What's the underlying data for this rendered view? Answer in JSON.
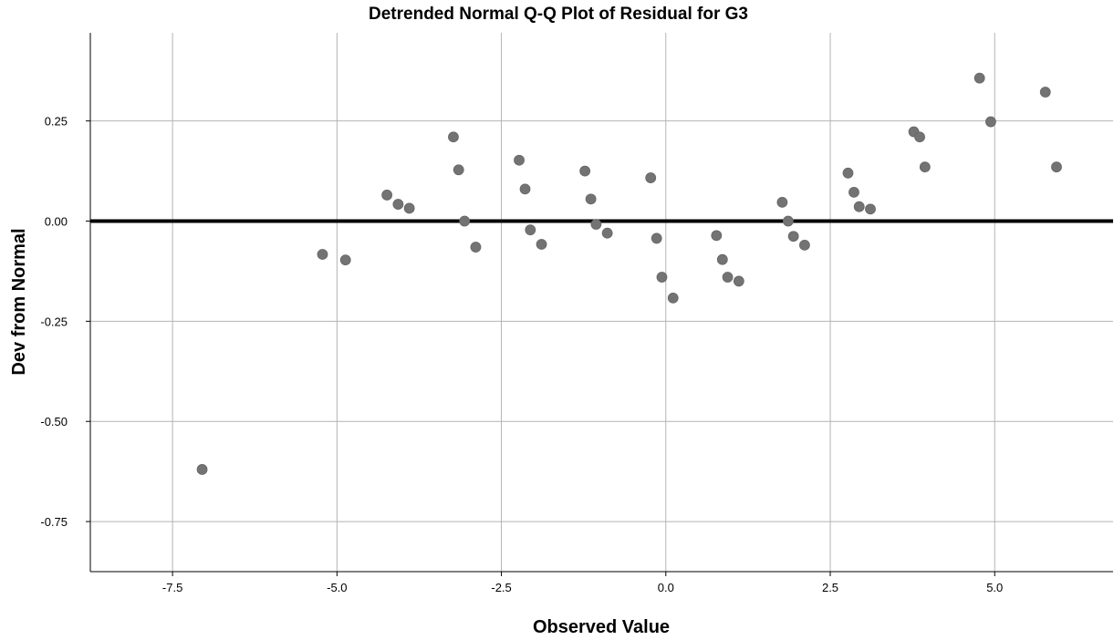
{
  "chart_data": {
    "type": "scatter",
    "title": "Detrended Normal Q-Q Plot of Residual for G3",
    "xlabel": "Observed Value",
    "ylabel": "Dev from Normal",
    "xlim": [
      -8.75,
      6.8
    ],
    "ylim": [
      -0.875,
      0.47
    ],
    "xticks": [
      -7.5,
      -5.0,
      -2.5,
      0.0,
      2.5,
      5.0
    ],
    "xtick_labels": [
      "-7.5",
      "-5.0",
      "-2.5",
      "0.0",
      "2.5",
      "5.0"
    ],
    "yticks": [
      0.25,
      0.0,
      -0.25,
      -0.5,
      -0.75
    ],
    "ytick_labels": [
      "0.25",
      "0.00",
      "-0.25",
      "-0.50",
      "-0.75"
    ],
    "grid": true,
    "reference_line_y": 0.0,
    "colors": {
      "point": "#737373",
      "grid": "#b4b4b4",
      "reference": "#000000",
      "axis": "#000000"
    },
    "points": [
      {
        "x": -7.05,
        "y": -0.62
      },
      {
        "x": -5.22,
        "y": -0.083
      },
      {
        "x": -4.87,
        "y": -0.097
      },
      {
        "x": -4.24,
        "y": 0.065
      },
      {
        "x": -4.07,
        "y": 0.042
      },
      {
        "x": -3.9,
        "y": 0.032
      },
      {
        "x": -3.23,
        "y": 0.21
      },
      {
        "x": -3.15,
        "y": 0.128
      },
      {
        "x": -3.06,
        "y": 0.0
      },
      {
        "x": -2.89,
        "y": -0.065
      },
      {
        "x": -2.23,
        "y": 0.152
      },
      {
        "x": -2.14,
        "y": 0.08
      },
      {
        "x": -2.06,
        "y": -0.022
      },
      {
        "x": -1.89,
        "y": -0.058
      },
      {
        "x": -1.23,
        "y": 0.125
      },
      {
        "x": -1.14,
        "y": 0.055
      },
      {
        "x": -1.06,
        "y": -0.008
      },
      {
        "x": -0.89,
        "y": -0.03
      },
      {
        "x": -0.23,
        "y": 0.108
      },
      {
        "x": -0.14,
        "y": -0.043
      },
      {
        "x": -0.06,
        "y": -0.14
      },
      {
        "x": 0.11,
        "y": -0.192
      },
      {
        "x": 0.77,
        "y": -0.036
      },
      {
        "x": 0.86,
        "y": -0.096
      },
      {
        "x": 0.94,
        "y": -0.14
      },
      {
        "x": 1.11,
        "y": -0.15
      },
      {
        "x": 1.77,
        "y": 0.047
      },
      {
        "x": 1.86,
        "y": 0.0
      },
      {
        "x": 1.94,
        "y": -0.038
      },
      {
        "x": 2.11,
        "y": -0.06
      },
      {
        "x": 2.77,
        "y": 0.12
      },
      {
        "x": 2.86,
        "y": 0.072
      },
      {
        "x": 2.94,
        "y": 0.036
      },
      {
        "x": 3.11,
        "y": 0.03
      },
      {
        "x": 3.77,
        "y": 0.223
      },
      {
        "x": 3.86,
        "y": 0.21
      },
      {
        "x": 3.94,
        "y": 0.135
      },
      {
        "x": 4.77,
        "y": 0.357
      },
      {
        "x": 4.94,
        "y": 0.248
      },
      {
        "x": 5.77,
        "y": 0.322
      },
      {
        "x": 5.94,
        "y": 0.135
      }
    ]
  }
}
